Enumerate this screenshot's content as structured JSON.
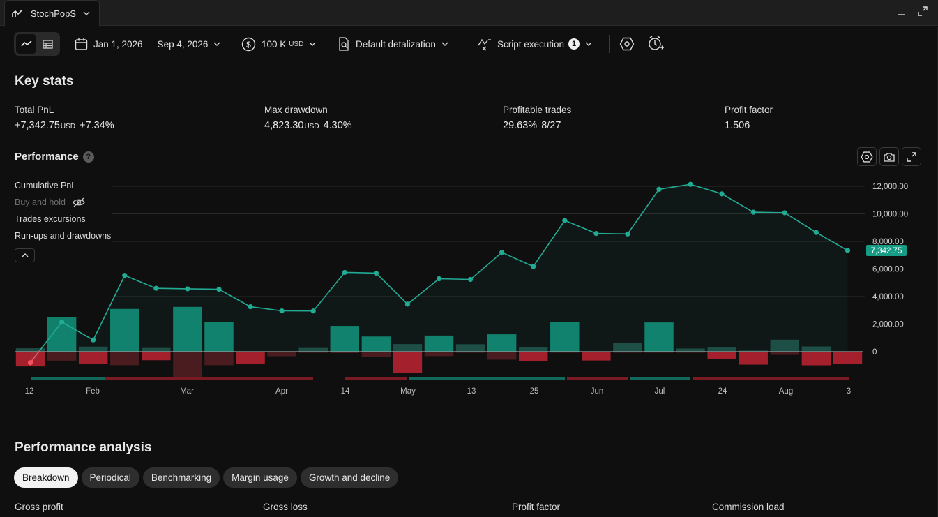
{
  "app": {
    "tab_title": "StochPopS"
  },
  "toolbar": {
    "date_range": "Jan 1, 2026 — Sep 4, 2026",
    "capital": "100 K",
    "capital_unit": "USD",
    "detalization": "Default detalization",
    "script_execution": "Script execution",
    "script_execution_count": "1"
  },
  "key_stats": {
    "title": "Key stats",
    "total_pnl": {
      "label": "Total PnL",
      "value": "+7,342.75",
      "unit": "USD",
      "percent": "+7.34%"
    },
    "max_drawdown": {
      "label": "Max drawdown",
      "value": "4,823.30",
      "unit": "USD",
      "percent": "4.30%"
    },
    "profitable_trades": {
      "label": "Profitable trades",
      "percent": "29.63%",
      "ratio": "8/27"
    },
    "profit_factor": {
      "label": "Profit factor",
      "value": "1.506"
    }
  },
  "performance": {
    "title": "Performance",
    "help": "?",
    "legend": {
      "cumulative": "Cumulative PnL",
      "buy_hold": "Buy and hold",
      "excursions": "Trades excursions",
      "runups": "Run-ups and drawdowns"
    }
  },
  "chart_data": {
    "type": "line",
    "title": "",
    "ylim": [
      -1000,
      13000
    ],
    "y_ticks": [
      "12,000.00",
      "10,000.00",
      "8,000.00",
      "6,000.00",
      "4,000.00",
      "2,000.00",
      "0"
    ],
    "y_tick_values": [
      12000,
      10000,
      8000,
      6000,
      4000,
      2000,
      0
    ],
    "x_tick_labels": [
      "12",
      "Feb",
      "Mar",
      "Apr",
      "14",
      "May",
      "13",
      "25",
      "Jun",
      "Jul",
      "24",
      "Aug",
      "3"
    ],
    "last_value_label": "7,342.75",
    "colors": {
      "line": "#22ab94",
      "up_bar": "#0f7e6b",
      "down_bar": "#a3202c",
      "first_point": "#f7525f"
    },
    "series": [
      {
        "name": "Cumulative PnL",
        "values": [
          -800,
          2150,
          850,
          5530,
          4600,
          4560,
          4530,
          3260,
          2960,
          2950,
          5750,
          5700,
          3450,
          5290,
          5240,
          7200,
          6180,
          9520,
          8580,
          8540,
          11780,
          12140,
          11450,
          10120,
          10080,
          8650,
          7342.75
        ]
      }
    ],
    "excursion_bars": [
      {
        "up": 250,
        "down": -1070
      },
      {
        "up": 2480,
        "down": -650
      },
      {
        "up": 370,
        "down": -870
      },
      {
        "up": 3100,
        "down": -980
      },
      {
        "up": 270,
        "down": -620
      },
      {
        "up": 3250,
        "down": -1930
      },
      {
        "up": 2170,
        "down": -980
      },
      {
        "up": 0,
        "down": -870
      },
      {
        "up": 0,
        "down": -330
      },
      {
        "up": 270,
        "down": -80
      },
      {
        "up": 1870,
        "down": -100
      },
      {
        "up": 1100,
        "down": -360
      },
      {
        "up": 550,
        "down": -1530
      },
      {
        "up": 1170,
        "down": -320
      },
      {
        "up": 540,
        "down": -80
      },
      {
        "up": 1260,
        "down": -580
      },
      {
        "up": 350,
        "down": -700
      },
      {
        "up": 2170,
        "down": -80
      },
      {
        "up": 0,
        "down": -640
      },
      {
        "up": 630,
        "down": -80
      },
      {
        "up": 2120,
        "down": -80
      },
      {
        "up": 230,
        "down": -80
      },
      {
        "up": 300,
        "down": -530
      },
      {
        "up": 80,
        "down": -940
      },
      {
        "up": 870,
        "down": -230
      },
      {
        "up": 380,
        "down": -990
      },
      {
        "up": 0,
        "down": -890
      }
    ]
  },
  "analysis": {
    "title": "Performance analysis",
    "tabs": [
      "Breakdown",
      "Periodical",
      "Benchmarking",
      "Margin usage",
      "Growth and decline"
    ],
    "stats": [
      "Gross profit",
      "Gross loss",
      "Profit factor",
      "Commission load"
    ]
  }
}
